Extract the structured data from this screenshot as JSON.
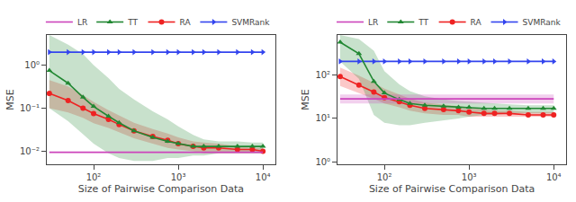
{
  "chart_data": [
    {
      "type": "line",
      "xlabel": "Size of Pairwise Comparison Data",
      "ylabel": "MSE",
      "log": true,
      "grid": false,
      "legend": "upper right",
      "x": [
        30,
        50,
        75,
        100,
        150,
        200,
        300,
        500,
        750,
        1000,
        1500,
        2000,
        3000,
        5000,
        7500,
        10000
      ],
      "xlim": [
        28,
        14000
      ],
      "xticks": [
        {
          "value": 100,
          "label": "10²"
        },
        {
          "value": 1000,
          "label": "10³"
        },
        {
          "value": 10000,
          "label": "10⁴"
        }
      ],
      "ylim": [
        0.005,
        5.0
      ],
      "yticks": [
        {
          "value": 0.01,
          "label": "10⁻²"
        },
        {
          "value": 0.1,
          "label": "10⁻¹"
        },
        {
          "value": 1,
          "label": "10⁰"
        }
      ],
      "series": [
        {
          "name": "SVMRank",
          "color": "#3344ee",
          "marker": "triangle-right",
          "values": [
            2.0,
            2.0,
            2.0,
            2.0,
            2.0,
            2.0,
            2.0,
            2.0,
            2.0,
            2.0,
            2.0,
            2.0,
            2.0,
            2.0,
            2.0,
            2.0
          ]
        },
        {
          "name": "RA",
          "color": "#ee2222",
          "marker": "circle",
          "values": [
            0.22,
            0.15,
            0.1,
            0.075,
            0.055,
            0.042,
            0.03,
            0.022,
            0.018,
            0.015,
            0.013,
            0.012,
            0.012,
            0.011,
            0.011,
            0.01
          ],
          "lower": [
            0.1,
            0.08,
            0.06,
            0.045,
            0.035,
            0.028,
            0.02,
            0.015,
            0.012,
            0.011,
            0.01,
            0.009,
            0.009,
            0.009,
            0.009,
            0.009
          ],
          "upper": [
            0.45,
            0.32,
            0.2,
            0.14,
            0.09,
            0.068,
            0.046,
            0.033,
            0.026,
            0.021,
            0.017,
            0.016,
            0.015,
            0.013,
            0.012,
            0.012
          ]
        },
        {
          "name": "TT",
          "color": "#228833",
          "marker": "triangle-up",
          "values": [
            0.75,
            0.38,
            0.18,
            0.11,
            0.065,
            0.046,
            0.03,
            0.021,
            0.017,
            0.015,
            0.013,
            0.013,
            0.013,
            0.013,
            0.013,
            0.013
          ],
          "lower": [
            0.1,
            0.05,
            0.025,
            0.015,
            0.009,
            0.007,
            0.006,
            0.006,
            0.007,
            0.007,
            0.008,
            0.008,
            0.009,
            0.009,
            0.009,
            0.009
          ],
          "upper": [
            5.0,
            3.0,
            1.8,
            1.0,
            0.5,
            0.28,
            0.16,
            0.085,
            0.055,
            0.038,
            0.024,
            0.019,
            0.017,
            0.017,
            0.016,
            0.016
          ]
        },
        {
          "name": "LR",
          "color": "#cc44bb",
          "marker": "none",
          "values": [
            0.0095,
            0.0095,
            0.0095,
            0.0095,
            0.0095,
            0.0095,
            0.0095,
            0.0095,
            0.0095,
            0.0095,
            0.0095,
            0.0095,
            0.0095,
            0.0095,
            0.0095,
            0.0095
          ],
          "lower": [
            0.0095,
            0.0095,
            0.0095,
            0.0095,
            0.0095,
            0.0095,
            0.0095,
            0.0095,
            0.0095,
            0.0095,
            0.0095,
            0.0095,
            0.0095,
            0.0095,
            0.0095,
            0.0095
          ],
          "upper": [
            0.0095,
            0.0095,
            0.0095,
            0.0095,
            0.0095,
            0.0095,
            0.0095,
            0.0095,
            0.0095,
            0.0095,
            0.0095,
            0.0095,
            0.0095,
            0.0095,
            0.0095,
            0.0095
          ]
        }
      ]
    },
    {
      "type": "line",
      "xlabel": "Size of Pairwise Comparison Data",
      "ylabel": "MSE",
      "log": true,
      "grid": false,
      "legend": "upper right",
      "x": [
        30,
        50,
        75,
        100,
        150,
        200,
        300,
        500,
        750,
        1000,
        1500,
        2000,
        3000,
        5000,
        7500,
        10000
      ],
      "xlim": [
        28,
        14000
      ],
      "xticks": [
        {
          "value": 100,
          "label": "10²"
        },
        {
          "value": 1000,
          "label": "10³"
        },
        {
          "value": 10000,
          "label": "10⁴"
        }
      ],
      "ylim": [
        0.9,
        800.0
      ],
      "yticks": [
        {
          "value": 1,
          "label": "10⁰"
        },
        {
          "value": 10,
          "label": "10¹"
        },
        {
          "value": 100,
          "label": "10²"
        }
      ],
      "series": [
        {
          "name": "SVMRank",
          "color": "#3344ee",
          "marker": "triangle-right",
          "values": [
            200,
            200,
            200,
            200,
            200,
            200,
            200,
            200,
            200,
            200,
            200,
            200,
            200,
            200,
            200,
            200
          ]
        },
        {
          "name": "RA",
          "color": "#ee2222",
          "marker": "circle",
          "values": [
            90,
            58,
            40,
            30,
            24,
            20,
            17,
            16,
            15,
            14,
            13,
            13,
            13,
            12,
            12,
            12
          ],
          "lower": [
            55,
            38,
            28,
            22,
            18,
            15,
            13,
            12,
            12,
            11,
            11,
            11,
            11,
            11,
            11,
            11
          ],
          "upper": [
            145,
            95,
            65,
            48,
            35,
            28,
            23,
            21,
            19,
            18,
            16,
            15,
            15,
            14,
            14,
            14
          ]
        },
        {
          "name": "TT",
          "color": "#228833",
          "marker": "triangle-up",
          "values": [
            550,
            300,
            70,
            38,
            27,
            22,
            20,
            19,
            18,
            18,
            17,
            17,
            17,
            17,
            17,
            17
          ],
          "lower": [
            200,
            80,
            12,
            8,
            7,
            7,
            8,
            9,
            10,
            11,
            12,
            12,
            13,
            13,
            13,
            13
          ],
          "upper": [
            800,
            650,
            350,
            120,
            60,
            42,
            32,
            27,
            25,
            24,
            23,
            22,
            21,
            20,
            20,
            20
          ]
        },
        {
          "name": "LR",
          "color": "#cc44bb",
          "marker": "none",
          "values": [
            28,
            28,
            28,
            28,
            28,
            28,
            28,
            28,
            28,
            28,
            28,
            28,
            28,
            28,
            28,
            28
          ],
          "lower": [
            22,
            22,
            22,
            22,
            22,
            22,
            22,
            22,
            22,
            22,
            22,
            22,
            22,
            22,
            22,
            22
          ],
          "upper": [
            35,
            35,
            35,
            35,
            35,
            35,
            35,
            35,
            35,
            35,
            35,
            35,
            35,
            35,
            35,
            35
          ]
        }
      ]
    }
  ]
}
